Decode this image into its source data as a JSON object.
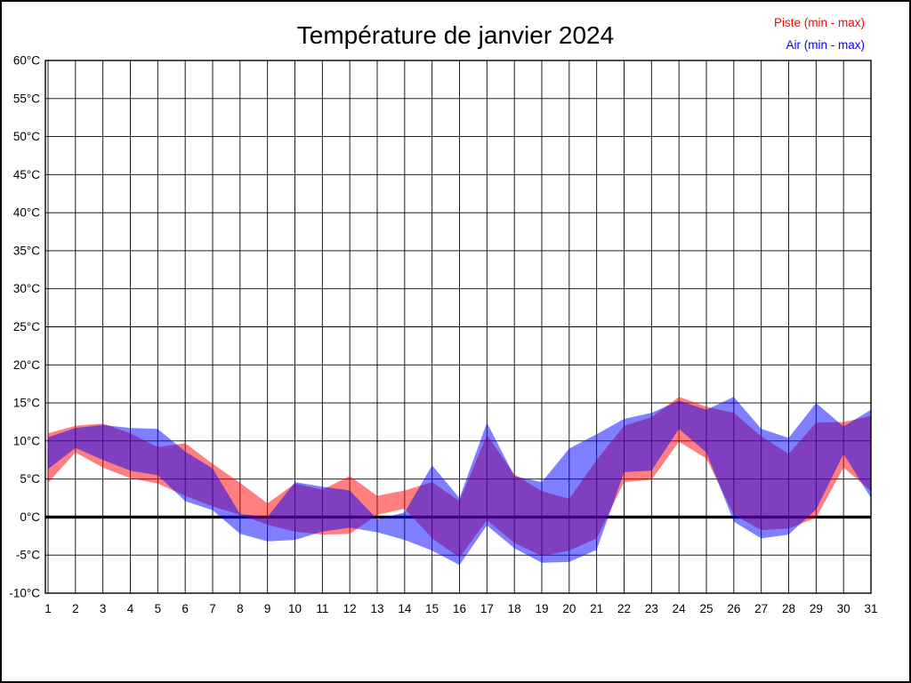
{
  "title": "Température de janvier 2024",
  "legend": {
    "piste": "Piste (min - max)",
    "air": "Air (min - max)"
  },
  "chart_data": {
    "type": "area",
    "title": "Température de janvier 2024",
    "xlabel": "",
    "ylabel": "",
    "y_unit": "°C",
    "ylim": [
      -10,
      60
    ],
    "y_tick_step": 5,
    "grid": true,
    "zero_line_value": 0,
    "legend_position": "top-right-outside",
    "y_tick_values": [
      60,
      55,
      50,
      45,
      40,
      35,
      30,
      25,
      20,
      15,
      10,
      5,
      0,
      -5,
      -10
    ],
    "y_tick_labels": [
      "60°C",
      "55°C",
      "50°C",
      "45°C",
      "40°C",
      "35°C",
      "30°C",
      "25°C",
      "20°C",
      "15°C",
      "10°C",
      "5°C",
      "0°C",
      "-5°C",
      "-10°C"
    ],
    "x": [
      1,
      2,
      3,
      4,
      5,
      6,
      7,
      8,
      9,
      10,
      11,
      12,
      13,
      14,
      15,
      16,
      17,
      18,
      19,
      20,
      21,
      22,
      23,
      24,
      25,
      26,
      27,
      28,
      29,
      30,
      31
    ],
    "series": [
      {
        "name": "Piste (min - max)",
        "color": "#ff0000",
        "fill_alpha": 0.5,
        "min": [
          4.5,
          8.5,
          6.5,
          5.1,
          4.4,
          2.8,
          1.4,
          0.3,
          -1.0,
          -1.9,
          -2.3,
          -2.2,
          0.3,
          1.1,
          -2.8,
          -5.3,
          -0.4,
          -3.4,
          -5.1,
          -4.4,
          -2.8,
          4.6,
          4.9,
          9.9,
          7.7,
          0.3,
          -1.7,
          -1.5,
          -0.1,
          6.5,
          3.4
        ],
        "max": [
          11.0,
          12.0,
          12.3,
          11.0,
          9.2,
          9.7,
          7.0,
          4.5,
          1.8,
          4.4,
          3.6,
          5.4,
          2.8,
          3.5,
          4.6,
          2.1,
          10.8,
          5.6,
          3.4,
          2.4,
          7.5,
          12.0,
          13.1,
          15.8,
          14.5,
          13.7,
          10.6,
          8.3,
          12.4,
          12.5,
          13.3
        ]
      },
      {
        "name": "Air (min - max)",
        "color": "#0000ff",
        "fill_alpha": 0.5,
        "min": [
          6.3,
          9.1,
          7.5,
          6.1,
          5.5,
          2.1,
          0.9,
          -2.2,
          -3.2,
          -3.0,
          -1.9,
          -1.4,
          -2.0,
          -3.0,
          -4.4,
          -6.3,
          -1.1,
          -4.1,
          -6.0,
          -5.9,
          -4.3,
          5.9,
          6.1,
          11.6,
          8.5,
          -0.6,
          -2.8,
          -2.3,
          1.0,
          8.3,
          2.5
        ],
        "max": [
          10.5,
          11.7,
          12.1,
          11.7,
          11.6,
          8.6,
          6.4,
          0.4,
          0.0,
          4.6,
          4.0,
          3.5,
          -0.3,
          0.6,
          6.8,
          2.5,
          12.4,
          5.4,
          4.6,
          9.0,
          10.9,
          12.9,
          13.7,
          15.3,
          14.1,
          15.8,
          11.6,
          10.4,
          15.0,
          11.9,
          14.1
        ]
      }
    ],
    "grid_color": "#000000",
    "background_color": "#ffffff"
  }
}
